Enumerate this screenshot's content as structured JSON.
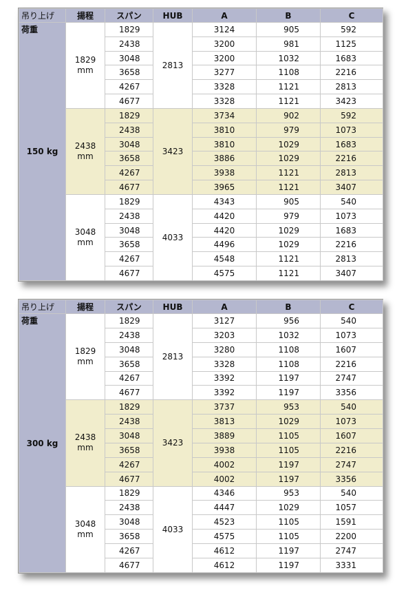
{
  "headers": {
    "load": "吊り上げ",
    "load_sub": "荷重",
    "lift": "揚程",
    "span": "スパン",
    "hub": "HUB",
    "a": "A",
    "b": "B",
    "c": "C"
  },
  "tables": [
    {
      "load": "150 kg",
      "groups": [
        {
          "lift": "1829",
          "unit": "mm",
          "hub": "2813",
          "rows": [
            [
              "1829",
              "3124",
              "905",
              "592"
            ],
            [
              "2438",
              "3200",
              "981",
              "1125"
            ],
            [
              "3048",
              "3200",
              "1032",
              "1683"
            ],
            [
              "3658",
              "3277",
              "1108",
              "2216"
            ],
            [
              "4267",
              "3328",
              "1121",
              "2813"
            ],
            [
              "4677",
              "3328",
              "1121",
              "3423"
            ]
          ]
        },
        {
          "lift": "2438",
          "unit": "mm",
          "hub": "3423",
          "rows": [
            [
              "1829",
              "3734",
              "902",
              "592"
            ],
            [
              "2438",
              "3810",
              "979",
              "1073"
            ],
            [
              "3048",
              "3810",
              "1029",
              "1683"
            ],
            [
              "3658",
              "3886",
              "1029",
              "2216"
            ],
            [
              "4267",
              "3938",
              "1121",
              "2813"
            ],
            [
              "4677",
              "3965",
              "1121",
              "3407"
            ]
          ]
        },
        {
          "lift": "3048",
          "unit": "mm",
          "hub": "4033",
          "rows": [
            [
              "1829",
              "4343",
              "905",
              "540"
            ],
            [
              "2438",
              "4420",
              "979",
              "1073"
            ],
            [
              "3048",
              "4420",
              "1029",
              "1683"
            ],
            [
              "3658",
              "4496",
              "1029",
              "2216"
            ],
            [
              "4267",
              "4548",
              "1121",
              "2813"
            ],
            [
              "4677",
              "4575",
              "1121",
              "3407"
            ]
          ]
        }
      ]
    },
    {
      "load": "300 kg",
      "groups": [
        {
          "lift": "1829",
          "unit": "mm",
          "hub": "2813",
          "rows": [
            [
              "1829",
              "3127",
              "956",
              "540"
            ],
            [
              "2438",
              "3203",
              "1032",
              "1073"
            ],
            [
              "3048",
              "3280",
              "1108",
              "1607"
            ],
            [
              "3658",
              "3328",
              "1108",
              "2216"
            ],
            [
              "4267",
              "3392",
              "1197",
              "2747"
            ],
            [
              "4677",
              "3392",
              "1197",
              "3356"
            ]
          ]
        },
        {
          "lift": "2438",
          "unit": "mm",
          "hub": "3423",
          "rows": [
            [
              "1829",
              "3737",
              "953",
              "540"
            ],
            [
              "2438",
              "3813",
              "1029",
              "1073"
            ],
            [
              "3048",
              "3889",
              "1105",
              "1607"
            ],
            [
              "3658",
              "3938",
              "1105",
              "2216"
            ],
            [
              "4267",
              "4002",
              "1197",
              "2747"
            ],
            [
              "4677",
              "4002",
              "1197",
              "3356"
            ]
          ]
        },
        {
          "lift": "3048",
          "unit": "mm",
          "hub": "4033",
          "rows": [
            [
              "1829",
              "4346",
              "953",
              "540"
            ],
            [
              "2438",
              "4447",
              "1029",
              "1057"
            ],
            [
              "3048",
              "4523",
              "1105",
              "1591"
            ],
            [
              "3658",
              "4575",
              "1105",
              "2200"
            ],
            [
              "4267",
              "4612",
              "1197",
              "2747"
            ],
            [
              "4677",
              "4612",
              "1197",
              "3331"
            ]
          ]
        }
      ]
    }
  ]
}
